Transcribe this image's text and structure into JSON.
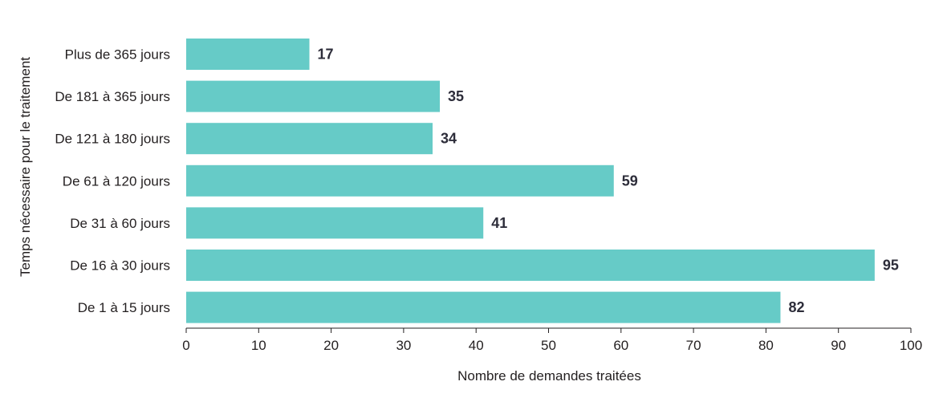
{
  "chart_data": {
    "type": "bar",
    "orientation": "horizontal",
    "categories": [
      "Plus de 365 jours",
      "De 181 à 365 jours",
      "De 121 à 180 jours",
      "De 61 à 120 jours",
      "De 31 à 60 jours",
      "De 16 à 30 jours",
      "De 1 à 15 jours"
    ],
    "values": [
      17,
      35,
      34,
      59,
      41,
      95,
      82
    ],
    "xlabel": "Nombre de demandes traitées",
    "ylabel": "Temps nécessaire pour le traitement",
    "xlim": [
      0,
      100
    ],
    "xticks": [
      0,
      10,
      20,
      30,
      40,
      50,
      60,
      70,
      80,
      90,
      100
    ],
    "grid": false,
    "bar_color": "#66cbc7",
    "value_label_color": "#2d2d3a"
  }
}
